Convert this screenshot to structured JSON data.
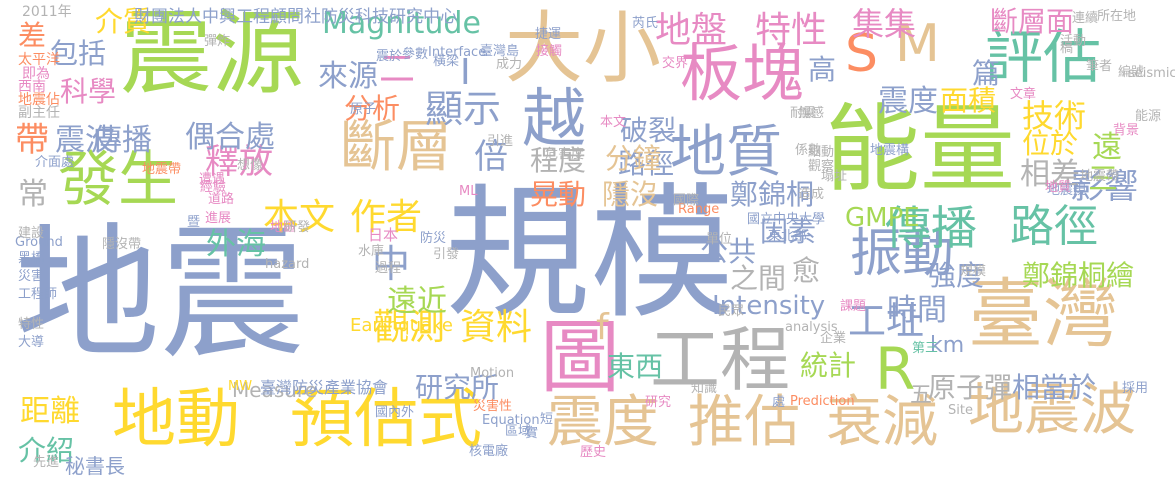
{
  "words": [
    {
      "text": "地震",
      "color": "#8da0cb"
    },
    {
      "text": "規模",
      "color": "#8da0cb"
    },
    {
      "text": "震源",
      "color": "#a6d854"
    },
    {
      "text": "能量",
      "color": "#a6d854"
    },
    {
      "text": "大小",
      "color": "#e5c494"
    },
    {
      "text": "臺灣",
      "color": "#e5c494"
    },
    {
      "text": "地動",
      "color": "#ffd92f"
    },
    {
      "text": "預估式",
      "color": "#ffd92f"
    },
    {
      "text": "震度",
      "color": "#e5c494"
    },
    {
      "text": "推估",
      "color": "#e5c494"
    },
    {
      "text": "衰減",
      "color": "#e5c494"
    },
    {
      "text": "地震波",
      "color": "#e5c494"
    },
    {
      "text": "工程",
      "color": "#b3b3b3"
    },
    {
      "text": "圖",
      "color": "#e78ac3"
    },
    {
      "text": "板塊",
      "color": "#e78ac3"
    },
    {
      "text": "評估",
      "color": "#66c2a5"
    },
    {
      "text": "斷層",
      "color": "#e5c494"
    },
    {
      "text": "發生",
      "color": "#a6d854"
    },
    {
      "text": "地質",
      "color": "#8da0cb"
    },
    {
      "text": "越",
      "color": "#8da0cb"
    },
    {
      "text": "振動",
      "color": "#8da0cb"
    },
    {
      "text": "傳播",
      "color": "#66c2a5"
    },
    {
      "text": "路徑",
      "color": "#66c2a5"
    },
    {
      "text": "S",
      "color": "#fc8d62"
    },
    {
      "text": "M",
      "color": "#e5c494"
    },
    {
      "text": "R",
      "color": "#a6d854"
    },
    {
      "text": "地盤",
      "color": "#e78ac3"
    },
    {
      "text": "特性",
      "color": "#e78ac3"
    },
    {
      "text": "Magnitude",
      "color": "#66c2a5"
    },
    {
      "text": "本文",
      "color": "#ffd92f"
    },
    {
      "text": "作者",
      "color": "#ffd92f"
    },
    {
      "text": "觀測",
      "color": "#ffd92f"
    },
    {
      "text": "資料",
      "color": "#ffd92f"
    },
    {
      "text": "工址",
      "color": "#8da0cb"
    },
    {
      "text": "傳播",
      "color": "#8da0cb"
    },
    {
      "text": "震波",
      "color": "#8da0cb"
    },
    {
      "text": "帶",
      "color": "#fc8d62"
    },
    {
      "text": "影響",
      "color": "#8da0cb"
    },
    {
      "text": "技術",
      "color": "#ffd92f"
    },
    {
      "text": "斷層面",
      "color": "#e78ac3"
    },
    {
      "text": "集集",
      "color": "#e78ac3"
    },
    {
      "text": "面積",
      "color": "#ffd92f"
    },
    {
      "text": "震度",
      "color": "#8da0cb"
    },
    {
      "text": "高",
      "color": "#8da0cb"
    },
    {
      "text": "篇",
      "color": "#8da0cb"
    },
    {
      "text": "位於",
      "color": "#ffd92f"
    },
    {
      "text": "遠",
      "color": "#a6d854"
    },
    {
      "text": "三",
      "color": "#a6d854"
    },
    {
      "text": "相差",
      "color": "#b3b3b3"
    },
    {
      "text": "顯示",
      "color": "#8da0cb"
    },
    {
      "text": "來源",
      "color": "#8da0cb"
    },
    {
      "text": "分析",
      "color": "#fc8d62"
    },
    {
      "text": "釋放",
      "color": "#e78ac3"
    },
    {
      "text": "偶合處",
      "color": "#8da0cb"
    },
    {
      "text": "破裂",
      "color": "#8da0cb"
    },
    {
      "text": "路徑",
      "color": "#8da0cb"
    },
    {
      "text": "程度",
      "color": "#b3b3b3"
    },
    {
      "text": "分鐘",
      "color": "#e5c494"
    },
    {
      "text": "晃動",
      "color": "#fc8d62"
    },
    {
      "text": "隱沒",
      "color": "#e5c494"
    },
    {
      "text": "倍",
      "color": "#8da0cb"
    },
    {
      "text": "鄭錦桐",
      "color": "#8da0cb"
    },
    {
      "text": "鄭錦桐繪",
      "color": "#a6d854"
    },
    {
      "text": "GMPE",
      "color": "#a6d854"
    },
    {
      "text": "因素",
      "color": "#8da0cb"
    },
    {
      "text": "公共",
      "color": "#8da0cb"
    },
    {
      "text": "之間",
      "color": "#b3b3b3"
    },
    {
      "text": "愈",
      "color": "#b3b3b3"
    },
    {
      "text": "強度",
      "color": "#8da0cb"
    },
    {
      "text": "時間",
      "color": "#8da0cb"
    },
    {
      "text": "Intensity",
      "color": "#8da0cb"
    },
    {
      "text": "中",
      "color": "#8da0cb"
    },
    {
      "text": "遠近",
      "color": "#a6d854"
    },
    {
      "text": "外海",
      "color": "#66c2a5"
    },
    {
      "text": "東西",
      "color": "#66c2a5"
    },
    {
      "text": "研究所",
      "color": "#8da0cb"
    },
    {
      "text": "統計",
      "color": "#a6d854"
    },
    {
      "text": "km",
      "color": "#8da0cb"
    },
    {
      "text": "原子彈",
      "color": "#b3b3b3"
    },
    {
      "text": "相當於",
      "color": "#8da0cb"
    },
    {
      "text": "五",
      "color": "#b3b3b3"
    },
    {
      "text": "距離",
      "color": "#ffd92f"
    },
    {
      "text": "介紹",
      "color": "#66c2a5"
    },
    {
      "text": "科學",
      "color": "#e78ac3"
    },
    {
      "text": "包括",
      "color": "#8da0cb"
    },
    {
      "text": "差",
      "color": "#fc8d62"
    },
    {
      "text": "介質",
      "color": "#ffd92f"
    },
    {
      "text": "常",
      "color": "#b3b3b3"
    },
    {
      "text": "f",
      "color": "#e5c494"
    },
    {
      "text": "二",
      "color": "#e78ac3"
    },
    {
      "text": "I",
      "color": "#8da0cb"
    },
    {
      "text": "Measure",
      "color": "#b3b3b3"
    },
    {
      "text": "臺灣防災產業協會",
      "color": "#8da0cb"
    },
    {
      "text": "Earthquake",
      "color": "#ffd92f"
    },
    {
      "text": "秘書長",
      "color": "#8da0cb"
    },
    {
      "text": "財團法人中興工程顧問社防災科技研究中心",
      "color": "#8da0cb"
    },
    {
      "text": "2011年",
      "color": "#b3b3b3"
    },
    {
      "text": "太平洋",
      "color": "#fc8d62"
    },
    {
      "text": "即為",
      "color": "#e78ac3"
    },
    {
      "text": "西南",
      "color": "#e78ac3"
    },
    {
      "text": "地震佔",
      "color": "#fc8d62"
    },
    {
      "text": "副主任",
      "color": "#b3b3b3"
    },
    {
      "text": "日本",
      "color": "#e78ac3"
    },
    {
      "text": "介面處",
      "color": "#8da0cb"
    },
    {
      "text": "Interface",
      "color": "#8da0cb"
    },
    {
      "text": "Ground",
      "color": "#8da0cb"
    },
    {
      "text": "Motion",
      "color": "#b3b3b3"
    },
    {
      "text": "Equation",
      "color": "#8da0cb"
    },
    {
      "text": "Prediction",
      "color": "#fc8d62"
    },
    {
      "text": "analysis",
      "color": "#b3b3b3"
    },
    {
      "text": "Range",
      "color": "#fc8d62"
    },
    {
      "text": "hazard",
      "color": "#b3b3b3"
    },
    {
      "text": "Site",
      "color": "#b3b3b3"
    },
    {
      "text": "seismic",
      "color": "#b3b3b3"
    },
    {
      "text": "ML",
      "color": "#e78ac3"
    },
    {
      "text": "MW",
      "color": "#ffd92f"
    },
    {
      "text": "國立中央大學",
      "color": "#8da0cb"
    },
    {
      "text": "東北部",
      "color": "#8da0cb"
    },
    {
      "text": "災害性",
      "color": "#fc8d62"
    },
    {
      "text": "核電廠",
      "color": "#8da0cb"
    },
    {
      "text": "歷史",
      "color": "#e78ac3"
    },
    {
      "text": "先進",
      "color": "#b3b3b3"
    },
    {
      "text": "大導",
      "color": "#8da0cb"
    },
    {
      "text": "特性",
      "color": "#b3b3b3"
    },
    {
      "text": "建設",
      "color": "#b3b3b3"
    },
    {
      "text": "工程師",
      "color": "#8da0cb"
    },
    {
      "text": "災害",
      "color": "#8da0cb"
    },
    {
      "text": "黑橋",
      "color": "#8da0cb"
    },
    {
      "text": "所在地",
      "color": "#b3b3b3"
    },
    {
      "text": "連續",
      "color": "#b3b3b3"
    },
    {
      "text": "規模",
      "color": "#b3b3b3"
    },
    {
      "text": "水庫",
      "color": "#b3b3b3"
    },
    {
      "text": "隱沒帶",
      "color": "#b3b3b3"
    },
    {
      "text": "地區",
      "color": "#e78ac3"
    },
    {
      "text": "國內外",
      "color": "#8da0cb"
    },
    {
      "text": "民眾",
      "color": "#b3b3b3"
    },
    {
      "text": "研究",
      "color": "#e78ac3"
    },
    {
      "text": "知識",
      "color": "#b3b3b3"
    },
    {
      "text": "國際",
      "color": "#b3b3b3"
    },
    {
      "text": "造成",
      "color": "#b3b3b3"
    },
    {
      "text": "係數",
      "color": "#b3b3b3"
    },
    {
      "text": "採用",
      "color": "#8da0cb"
    },
    {
      "text": "地震規",
      "color": "#8da0cb"
    },
    {
      "text": "第三",
      "color": "#66c2a5"
    },
    {
      "text": "企業",
      "color": "#b3b3b3"
    },
    {
      "text": "課題",
      "color": "#e78ac3"
    },
    {
      "text": "文章",
      "color": "#e78ac3"
    },
    {
      "text": "活動",
      "color": "#b3b3b3"
    },
    {
      "text": "引進",
      "color": "#b3b3b3"
    },
    {
      "text": "危害度",
      "color": "#b3b3b3"
    },
    {
      "text": "原子",
      "color": "#8da0cb"
    },
    {
      "text": "成力",
      "color": "#b3b3b3"
    },
    {
      "text": "交界",
      "color": "#e78ac3"
    },
    {
      "text": "橫梁",
      "color": "#8da0cb"
    },
    {
      "text": "參數",
      "color": "#8da0cb"
    },
    {
      "text": "震於",
      "color": "#8da0cb"
    },
    {
      "text": "捷運",
      "color": "#8da0cb"
    },
    {
      "text": "接觸",
      "color": "#e78ac3"
    },
    {
      "text": "臺灣島",
      "color": "#8da0cb"
    },
    {
      "text": "芮氏",
      "color": "#8da0cb"
    },
    {
      "text": "彈炸",
      "color": "#b3b3b3"
    },
    {
      "text": "地震帶",
      "color": "#fc8d62"
    },
    {
      "text": "經驗",
      "color": "#e78ac3"
    },
    {
      "text": "道路",
      "color": "#e78ac3"
    },
    {
      "text": "遭遇",
      "color": "#e78ac3"
    },
    {
      "text": "想像",
      "color": "#b3b3b3"
    },
    {
      "text": "進展",
      "color": "#e78ac3"
    },
    {
      "text": "研發",
      "color": "#b3b3b3"
    },
    {
      "text": "暨",
      "color": "#8da0cb"
    },
    {
      "text": "防災",
      "color": "#8da0cb"
    },
    {
      "text": "區域",
      "color": "#8da0cb"
    },
    {
      "text": "過程",
      "color": "#b3b3b3"
    },
    {
      "text": "引發",
      "color": "#b3b3b3"
    },
    {
      "text": "耐震",
      "color": "#b3b3b3"
    },
    {
      "text": "單位",
      "color": "#b3b3b3"
    },
    {
      "text": "本文",
      "color": "#e78ac3"
    },
    {
      "text": "背景",
      "color": "#e78ac3"
    },
    {
      "text": "無感",
      "color": "#b3b3b3"
    },
    {
      "text": "細動",
      "color": "#b3b3b3"
    },
    {
      "text": "觀察",
      "color": "#b3b3b3"
    },
    {
      "text": "地震構",
      "color": "#8da0cb"
    },
    {
      "text": "塌址",
      "color": "#b3b3b3"
    },
    {
      "text": "能源",
      "color": "#b3b3b3"
    },
    {
      "text": "編號",
      "color": "#b3b3b3"
    },
    {
      "text": "稿",
      "color": "#b3b3b3"
    },
    {
      "text": "筆者",
      "color": "#b3b3b3"
    },
    {
      "text": "地震帶",
      "color": "#b3b3b3"
    },
    {
      "text": "地質",
      "color": "#e78ac3"
    },
    {
      "text": "短",
      "color": "#8da0cb"
    },
    {
      "text": "實",
      "color": "#8da0cb"
    },
    {
      "text": "處",
      "color": "#8da0cb"
    }
  ]
}
